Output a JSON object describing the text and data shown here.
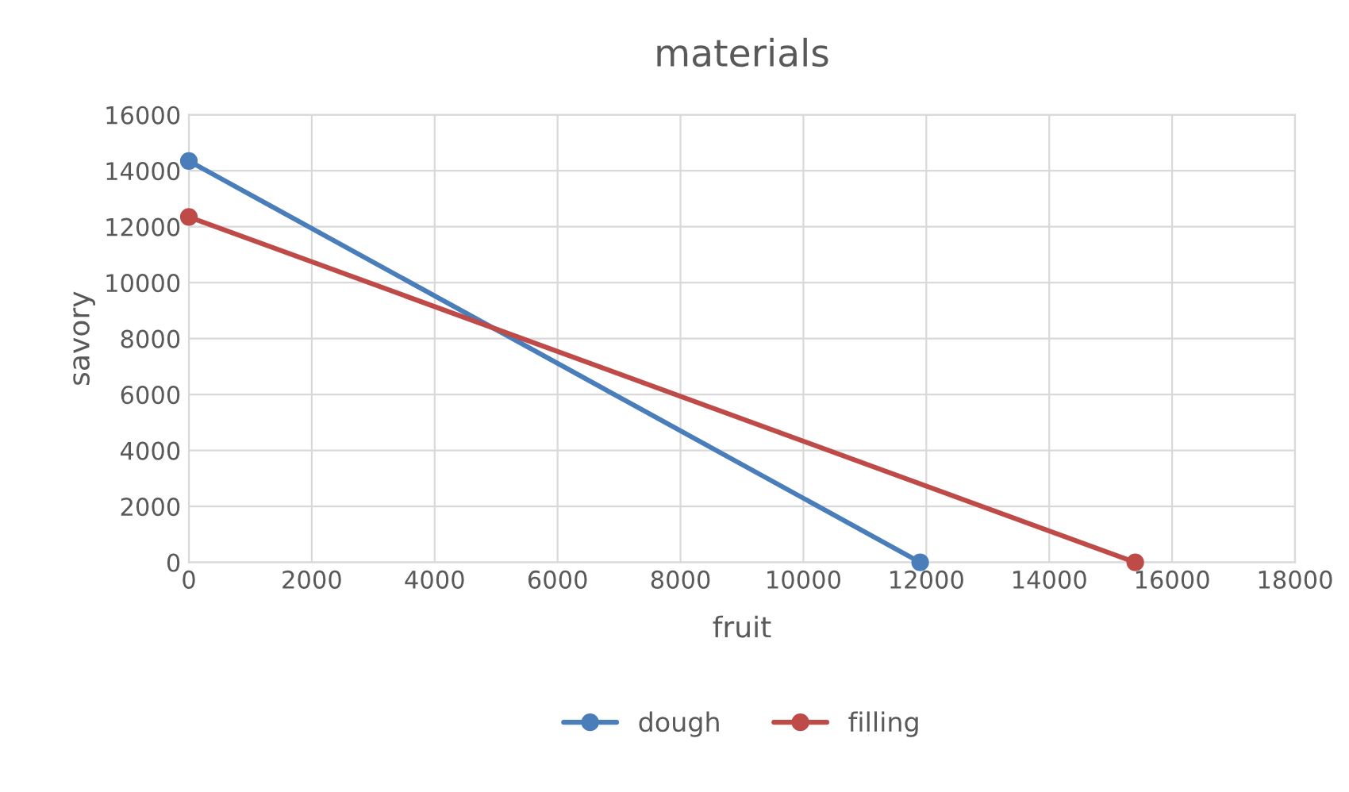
{
  "chart_data": {
    "type": "line",
    "title": "materials",
    "xlabel": "fruit",
    "ylabel": "savory",
    "series": [
      {
        "name": "dough",
        "color": "#4a7ebb",
        "x": [
          0,
          11900
        ],
        "values": [
          14350,
          0
        ]
      },
      {
        "name": "filling",
        "color": "#be4b48",
        "x": [
          0,
          15400
        ],
        "values": [
          12350,
          0
        ]
      }
    ],
    "xlim": [
      0,
      18000
    ],
    "xticks": [
      0,
      2000,
      4000,
      6000,
      8000,
      10000,
      12000,
      14000,
      16000,
      18000
    ],
    "ylim": [
      0,
      16000
    ],
    "yticks": [
      0,
      2000,
      4000,
      6000,
      8000,
      10000,
      12000,
      14000,
      16000
    ],
    "grid": true,
    "legend": "bottom",
    "marker": "circle",
    "line_style": "solid"
  }
}
